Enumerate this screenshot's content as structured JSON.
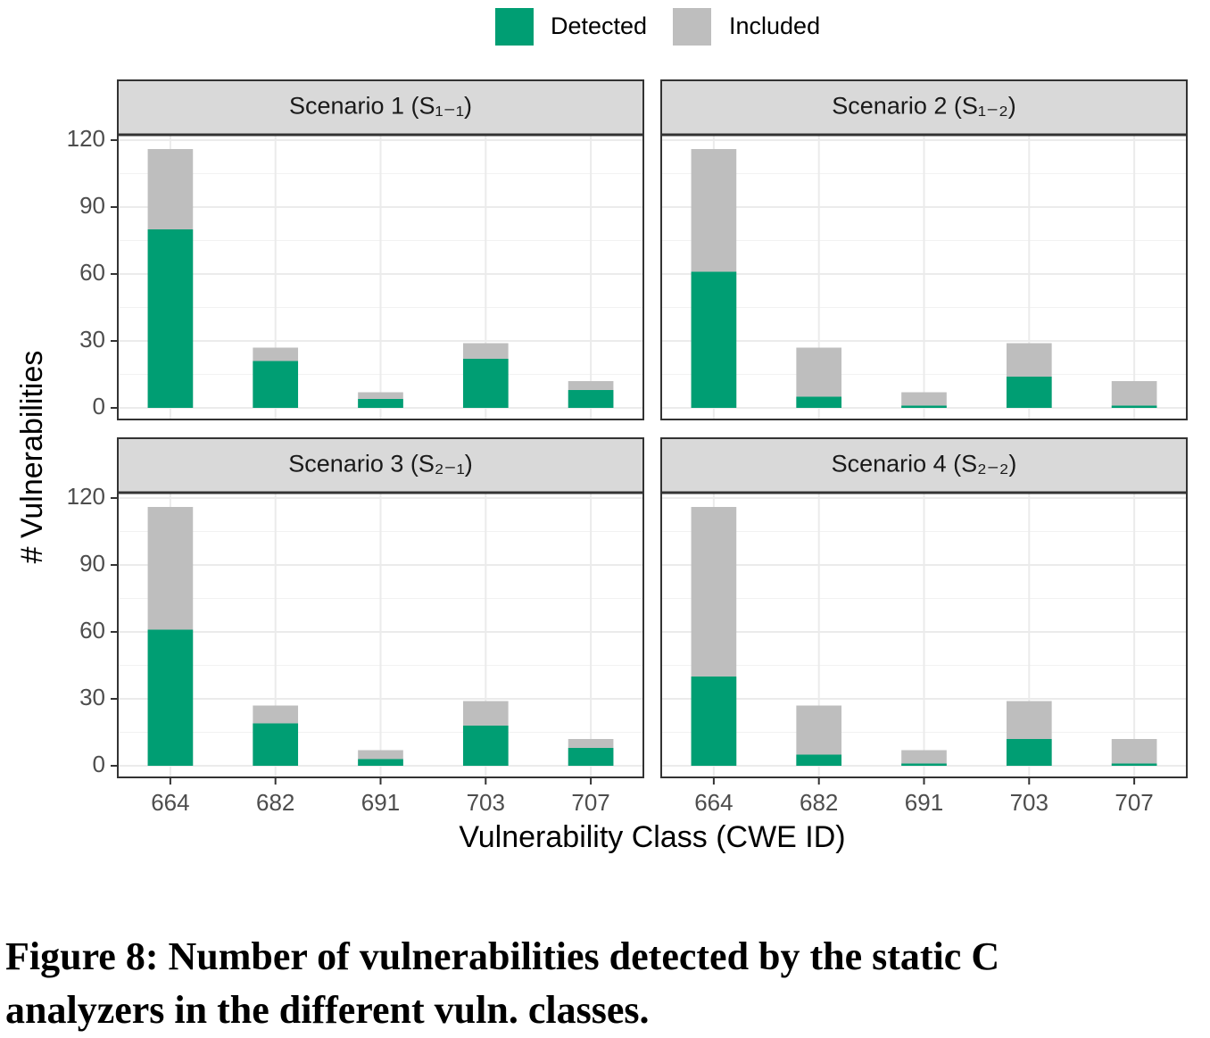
{
  "figure": {
    "x_label": "Vulnerability Class (CWE ID)",
    "y_label": "# Vulnerabilities",
    "caption": [
      "Figure 8: Number of vulnerabilities detected by the static C",
      "analyzers in the different vuln. classes."
    ]
  },
  "chart_data": [
    {
      "type": "bar",
      "title": "Scenario 1 (S₁₋₁)",
      "categories": [
        "664",
        "682",
        "691",
        "703",
        "707"
      ],
      "series": [
        {
          "name": "Detected",
          "color": "#009E73",
          "values": [
            80,
            21,
            4,
            22,
            8
          ]
        },
        {
          "name": "Included",
          "color": "#BEBEBE",
          "values": [
            116,
            27,
            7,
            29,
            12
          ]
        }
      ],
      "ylim": [
        -5.2,
        122.4
      ],
      "yticks": [
        0,
        30,
        60,
        90,
        120
      ],
      "grid": true
    },
    {
      "type": "bar",
      "title": "Scenario 2 (S₁₋₂)",
      "categories": [
        "664",
        "682",
        "691",
        "703",
        "707"
      ],
      "series": [
        {
          "name": "Detected",
          "color": "#009E73",
          "values": [
            61,
            5,
            1,
            14,
            1
          ]
        },
        {
          "name": "Included",
          "color": "#BEBEBE",
          "values": [
            116,
            27,
            7,
            29,
            12
          ]
        }
      ],
      "ylim": [
        -5.2,
        122.4
      ],
      "yticks": [
        0,
        30,
        60,
        90,
        120
      ],
      "grid": true
    },
    {
      "type": "bar",
      "title": "Scenario 3 (S₂₋₁)",
      "categories": [
        "664",
        "682",
        "691",
        "703",
        "707"
      ],
      "series": [
        {
          "name": "Detected",
          "color": "#009E73",
          "values": [
            61,
            19,
            3,
            18,
            8
          ]
        },
        {
          "name": "Included",
          "color": "#BEBEBE",
          "values": [
            116,
            27,
            7,
            29,
            12
          ]
        }
      ],
      "ylim": [
        -5.2,
        122.4
      ],
      "yticks": [
        0,
        30,
        60,
        90,
        120
      ],
      "grid": true
    },
    {
      "type": "bar",
      "title": "Scenario 4 (S₂₋₂)",
      "categories": [
        "664",
        "682",
        "691",
        "703",
        "707"
      ],
      "series": [
        {
          "name": "Detected",
          "color": "#009E73",
          "values": [
            40,
            5,
            1,
            12,
            1
          ]
        },
        {
          "name": "Included",
          "color": "#BEBEBE",
          "values": [
            116,
            27,
            7,
            29,
            12
          ]
        }
      ],
      "ylim": [
        -5.2,
        122.4
      ],
      "yticks": [
        0,
        30,
        60,
        90,
        120
      ],
      "grid": true
    }
  ]
}
